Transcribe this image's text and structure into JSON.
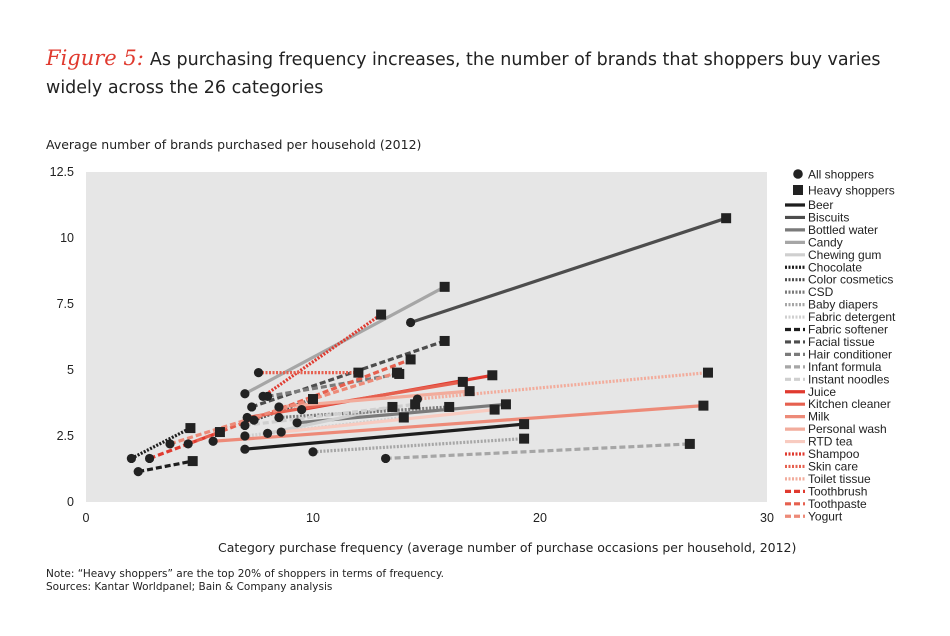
{
  "figure": {
    "label": "Figure 5:",
    "title": "As purchasing frequency increases, the number of brands that shoppers buy varies widely across the 26 categories"
  },
  "notes": {
    "note": "Note: “Heavy shoppers” are the top 20% of shoppers in terms of frequency.",
    "sources": "Sources: Kantar Worldpanel; Bain & Company analysis"
  },
  "chart_data": {
    "type": "scatter",
    "xlabel": "Category purchase frequency (average number of purchase occasions per household, 2012)",
    "ylabel": "Average number of brands purchased per household (2012)",
    "xlim": [
      0,
      30
    ],
    "ylim": [
      0,
      12.5
    ],
    "xticks": [
      "0",
      "10",
      "20",
      "30"
    ],
    "yticks": [
      "0",
      "2.5",
      "5",
      "7.5",
      "10",
      "12.5"
    ],
    "background": "#e6e6e6",
    "grid": false,
    "legend_position": "right",
    "marker_legend": [
      {
        "label": "All shoppers",
        "marker": "circle"
      },
      {
        "label": "Heavy shoppers",
        "marker": "square"
      }
    ],
    "series": [
      {
        "name": "Beer",
        "color": "#1e1e1e",
        "dash": "solid",
        "all": [
          7.0,
          2.0
        ],
        "heavy": [
          19.3,
          2.95
        ]
      },
      {
        "name": "Biscuits",
        "color": "#4d4d4d",
        "dash": "solid",
        "all": [
          14.3,
          6.8
        ],
        "heavy": [
          28.2,
          10.75
        ]
      },
      {
        "name": "Bottled water",
        "color": "#7a7a7a",
        "dash": "solid",
        "all": [
          9.3,
          3.0
        ],
        "heavy": [
          18.5,
          3.7
        ]
      },
      {
        "name": "Candy",
        "color": "#a6a6a6",
        "dash": "solid",
        "all": [
          7.0,
          4.1
        ],
        "heavy": [
          15.8,
          8.15
        ]
      },
      {
        "name": "Chewing gum",
        "color": "#cfcfcf",
        "dash": "solid",
        "all": [
          8.0,
          2.6
        ],
        "heavy": [
          13.5,
          3.6
        ]
      },
      {
        "name": "Chocolate",
        "color": "#1e1e1e",
        "dash": "dot",
        "all": [
          2.0,
          1.65
        ],
        "heavy": [
          4.6,
          2.8
        ]
      },
      {
        "name": "Color cosmetics",
        "color": "#4d4d4d",
        "dash": "dot",
        "all": [
          7.4,
          3.1
        ],
        "heavy": [
          10.0,
          3.9
        ]
      },
      {
        "name": "CSD",
        "color": "#7a7a7a",
        "dash": "dot",
        "all": [
          8.5,
          3.2
        ],
        "heavy": [
          16.0,
          3.6
        ]
      },
      {
        "name": "Baby diapers",
        "color": "#a6a6a6",
        "dash": "dot",
        "all": [
          10.0,
          1.9
        ],
        "heavy": [
          19.3,
          2.4
        ]
      },
      {
        "name": "Fabric detergent",
        "color": "#cfcfcf",
        "dash": "dot",
        "all": [
          7.0,
          2.5
        ],
        "heavy": [
          14.0,
          3.2
        ]
      },
      {
        "name": "Fabric softener",
        "color": "#1e1e1e",
        "dash": "dash",
        "all": [
          2.3,
          1.15
        ],
        "heavy": [
          4.7,
          1.55
        ]
      },
      {
        "name": "Facial tissue",
        "color": "#4d4d4d",
        "dash": "dash",
        "all": [
          7.3,
          3.6
        ],
        "heavy": [
          15.8,
          6.1
        ]
      },
      {
        "name": "Hair conditioner",
        "color": "#7a7a7a",
        "dash": "dash",
        "all": [
          8.0,
          4.0
        ],
        "heavy": [
          13.8,
          4.85
        ]
      },
      {
        "name": "Infant formula",
        "color": "#a6a6a6",
        "dash": "dash",
        "all": [
          13.2,
          1.65
        ],
        "heavy": [
          26.6,
          2.2
        ]
      },
      {
        "name": "Instant noodles",
        "color": "#cfcfcf",
        "dash": "dash",
        "all": [
          7.0,
          2.9
        ],
        "heavy": [
          14.5,
          3.7
        ]
      },
      {
        "name": "Juice",
        "color": "#e03a2f",
        "dash": "solid",
        "all": [
          9.5,
          3.5
        ],
        "heavy": [
          17.9,
          4.8
        ]
      },
      {
        "name": "Kitchen cleaner",
        "color": "#e6604f",
        "dash": "solid",
        "all": [
          7.1,
          3.2
        ],
        "heavy": [
          16.6,
          4.55
        ]
      },
      {
        "name": "Milk",
        "color": "#ed8a78",
        "dash": "solid",
        "all": [
          5.6,
          2.3
        ],
        "heavy": [
          27.2,
          3.65
        ]
      },
      {
        "name": "Personal wash",
        "color": "#f2ac9c",
        "dash": "solid",
        "all": [
          8.5,
          3.6
        ],
        "heavy": [
          16.9,
          4.2
        ]
      },
      {
        "name": "RTD tea",
        "color": "#f8cbc0",
        "dash": "solid",
        "all": [
          8.6,
          2.65
        ],
        "heavy": [
          18.0,
          3.5
        ]
      },
      {
        "name": "Shampoo",
        "color": "#e03a2f",
        "dash": "dot",
        "all": [
          7.8,
          4.0
        ],
        "heavy": [
          13.0,
          7.1
        ]
      },
      {
        "name": "Skin care",
        "color": "#e6604f",
        "dash": "dot",
        "all": [
          7.6,
          4.9
        ],
        "heavy": [
          12.0,
          4.9
        ]
      },
      {
        "name": "Toilet tissue",
        "color": "#f2ac9c",
        "dash": "dot",
        "all": [
          14.6,
          3.9
        ],
        "heavy": [
          27.4,
          4.9
        ]
      },
      {
        "name": "Toothbrush",
        "color": "#e03a2f",
        "dash": "dash",
        "all": [
          2.8,
          1.65
        ],
        "heavy": [
          5.9,
          2.65
        ]
      },
      {
        "name": "Toothpaste",
        "color": "#e6604f",
        "dash": "dash",
        "all": [
          4.5,
          2.2
        ],
        "heavy": [
          14.3,
          5.4
        ]
      },
      {
        "name": "Yogurt",
        "color": "#ed8a78",
        "dash": "dash",
        "all": [
          3.7,
          2.2
        ],
        "heavy": [
          13.7,
          4.9
        ]
      }
    ]
  }
}
